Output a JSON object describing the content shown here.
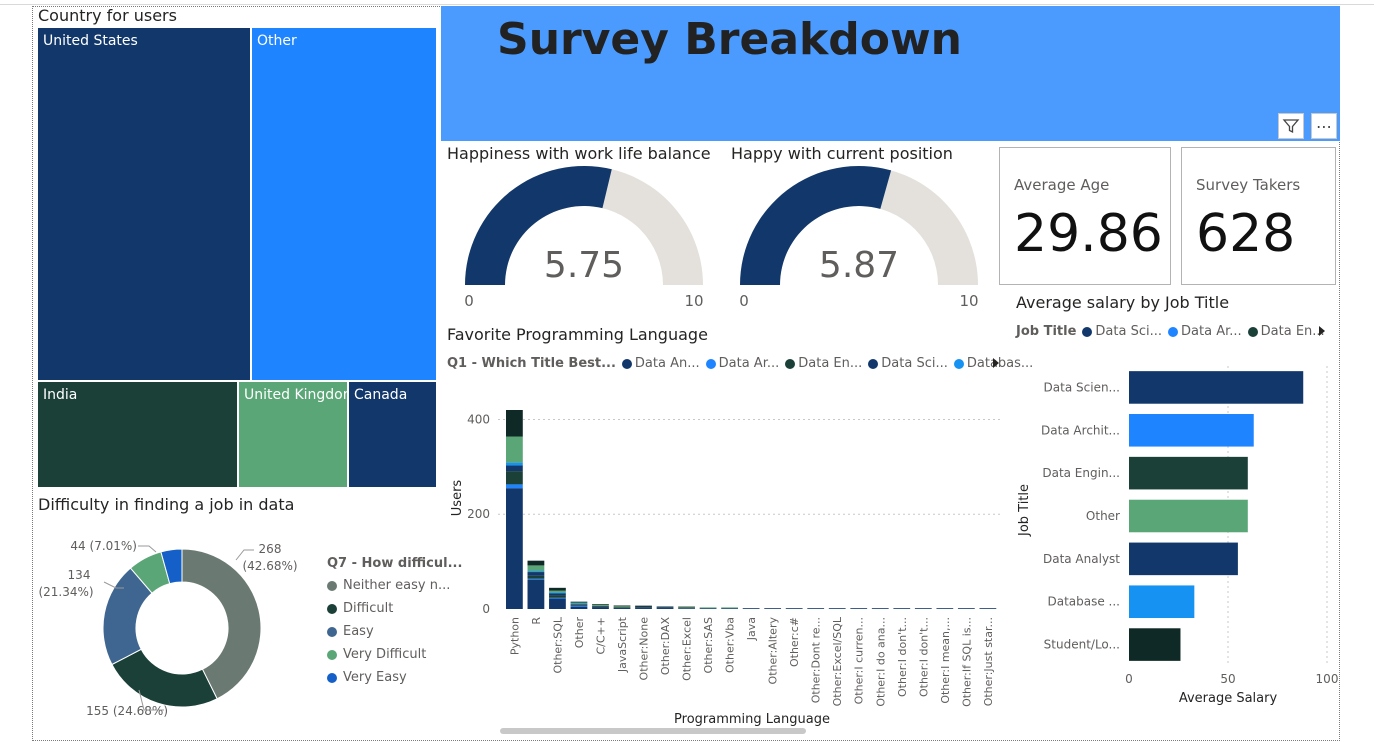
{
  "colors": {
    "navy": "#12386b",
    "blue": "#1e84ff",
    "dark_green": "#1b4038",
    "green": "#5aa676",
    "teal_black": "#0f2a26",
    "bright_blue": "#1693f2",
    "gray_green": "#6a7a72",
    "medium_blue": "#3f6690",
    "banner": "#4b9bff",
    "gauge_track": "#e4e1dc"
  },
  "treemap": {
    "title": "Country for users",
    "cells": [
      {
        "label": "United States",
        "color": "#12386b"
      },
      {
        "label": "Other",
        "color": "#1e84ff"
      },
      {
        "label": "India",
        "color": "#1b4038"
      },
      {
        "label": "United Kingdom",
        "color": "#5aa676"
      },
      {
        "label": "Canada",
        "color": "#12386b"
      }
    ]
  },
  "banner": {
    "title": "Survey Breakdown"
  },
  "visual_header": {
    "filter_icon": "filter-icon",
    "more_icon": "more-options-icon",
    "more_glyph": "⋯"
  },
  "gauges": [
    {
      "title": "Happiness with work life balance",
      "value": 5.75,
      "display": "5.75",
      "min": 0,
      "max": 10,
      "min_label": "0",
      "max_label": "10"
    },
    {
      "title": "Happy with current position",
      "value": 5.87,
      "display": "5.87",
      "min": 0,
      "max": 10,
      "min_label": "0",
      "max_label": "10"
    }
  ],
  "cards": [
    {
      "label": "Average Age",
      "value": "29.86"
    },
    {
      "label": "Survey Takers",
      "value": "628"
    }
  ],
  "donut": {
    "title": "Difficulty in finding a job in data",
    "legend_title": "Q7 - How difficul...",
    "slices": [
      {
        "name": "Neither easy n...",
        "value": 268,
        "label": "268",
        "pct": "(42.68%)",
        "color": "#6a7a72"
      },
      {
        "name": "Difficult",
        "value": 155,
        "label": "155 (24.68%)",
        "color": "#1b4038"
      },
      {
        "name": "Easy",
        "value": 134,
        "label": "134",
        "pct": "(21.34%)",
        "color": "#3f6690"
      },
      {
        "name": "Very Difficult",
        "value": 44,
        "label": "44 (7.01%)",
        "color": "#5aa676"
      },
      {
        "name": "Very Easy",
        "value": 27,
        "label": "",
        "color": "#1560c8"
      }
    ]
  },
  "chart_data": [
    {
      "type": "bar",
      "title": "Favorite Programming Language",
      "xlabel": "Programming Language",
      "ylabel": "Users",
      "ylim": [
        0,
        420
      ],
      "yticks": [
        0,
        200,
        400
      ],
      "legend_title": "Q1 - Which Title Best...",
      "legend": [
        "Data An...",
        "Data Ar...",
        "Data En...",
        "Data Sci...",
        "Databas..."
      ],
      "legend_colors": [
        "#12386b",
        "#1e84ff",
        "#1b4038",
        "#12386b",
        "#1693f2"
      ],
      "categories": [
        "Python",
        "R",
        "Other:SQL",
        "Other",
        "C/C++",
        "JavaScript",
        "Other:None",
        "Other:DAX",
        "Other:Excel",
        "Other:SAS",
        "Other:Vba",
        "Java",
        "Other:Altery",
        "Other:c#",
        "Other:Dont re...",
        "Other:Excel/SQL",
        "Other:I curren...",
        "Other:I do ana...",
        "Other:I don't...",
        "Other:I don't...",
        "Other:I mean,...",
        "Other:If SQL is...",
        "Other:Just star..."
      ],
      "series": [
        {
          "color": "#12386b",
          "values": [
            255,
            62,
            22,
            5,
            3,
            2,
            2,
            2,
            1,
            1,
            1,
            1,
            1,
            1,
            1,
            1,
            1,
            1,
            1,
            1,
            1,
            1,
            1
          ]
        },
        {
          "color": "#1e84ff",
          "values": [
            8,
            2,
            1,
            1,
            0,
            0,
            0,
            0,
            0,
            0,
            0,
            0,
            0,
            0,
            0,
            0,
            0,
            0,
            0,
            0,
            0,
            0,
            0
          ]
        },
        {
          "color": "#1b4038",
          "values": [
            28,
            6,
            5,
            1,
            1,
            1,
            1,
            1,
            0,
            0,
            0,
            0,
            0,
            0,
            0,
            0,
            0,
            0,
            0,
            0,
            0,
            0,
            0
          ]
        },
        {
          "color": "#12386b",
          "values": [
            12,
            8,
            4,
            1,
            1,
            0,
            1,
            1,
            0,
            0,
            0,
            0,
            0,
            0,
            0,
            0,
            0,
            0,
            0,
            0,
            0,
            0,
            0
          ]
        },
        {
          "color": "#1693f2",
          "values": [
            6,
            2,
            2,
            1,
            0,
            0,
            0,
            0,
            0,
            0,
            0,
            0,
            0,
            0,
            0,
            0,
            0,
            0,
            0,
            0,
            0,
            0,
            0
          ]
        },
        {
          "color": "#5aa676",
          "values": [
            55,
            12,
            4,
            2,
            2,
            2,
            0,
            0,
            1,
            1,
            1,
            0,
            0,
            0,
            0,
            0,
            0,
            0,
            0,
            0,
            0,
            0,
            0
          ]
        },
        {
          "color": "#0f2a26",
          "values": [
            56,
            10,
            6,
            1,
            1,
            1,
            1,
            0,
            1,
            0,
            0,
            0,
            0,
            0,
            0,
            0,
            0,
            0,
            0,
            0,
            0,
            0,
            0
          ]
        }
      ],
      "grid": true,
      "legend_position": "top"
    },
    {
      "type": "bar",
      "orientation": "horizontal",
      "title": "Average salary by Job Title",
      "xlabel": "Average Salary",
      "ylabel": "Job Title",
      "xlim": [
        0,
        100
      ],
      "xticks": [
        0,
        50,
        100
      ],
      "legend_title": "Job Title",
      "legend": [
        "Data Sci...",
        "Data Ar...",
        "Data En..."
      ],
      "legend_colors": [
        "#12386b",
        "#1e84ff",
        "#1b4038"
      ],
      "categories": [
        "Data Scien...",
        "Data Archit...",
        "Data Engin...",
        "Other",
        "Data Analyst",
        "Database ...",
        "Student/Lo..."
      ],
      "values": [
        88,
        63,
        60,
        60,
        55,
        33,
        26
      ],
      "colors": [
        "#12386b",
        "#1e84ff",
        "#1b4038",
        "#5aa676",
        "#12386b",
        "#1693f2",
        "#0f2a26"
      ],
      "grid": true,
      "legend_position": "top"
    }
  ]
}
